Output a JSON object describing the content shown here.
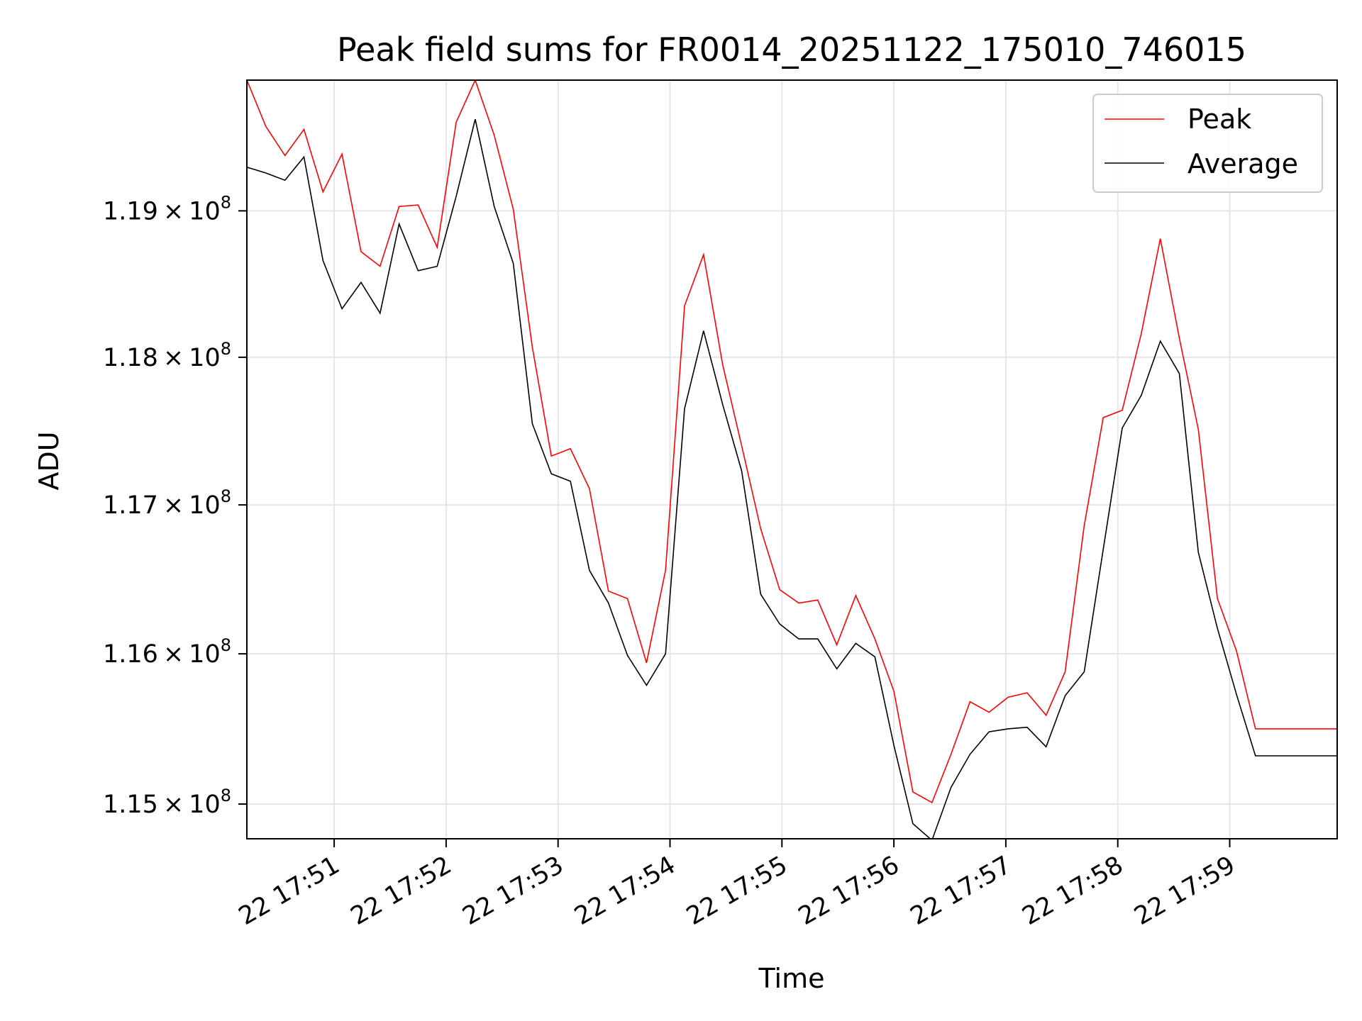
{
  "chart_data": {
    "type": "line",
    "title": "Peak field sums for FR0014_20251122_175010_746015",
    "xlabel": "Time",
    "ylabel": "ADU",
    "x_unit": "minutes after 17:50 (Nov 22)",
    "xlim": [
      0.22,
      9.96
    ],
    "ylim": [
      114770000,
      119900000
    ],
    "y_scale": "log",
    "grid": true,
    "legend_position": "top-right",
    "x_ticks": [
      {
        "value": 1,
        "label": "22 17:51"
      },
      {
        "value": 2,
        "label": "22 17:52"
      },
      {
        "value": 3,
        "label": "22 17:53"
      },
      {
        "value": 4,
        "label": "22 17:54"
      },
      {
        "value": 5,
        "label": "22 17:55"
      },
      {
        "value": 6,
        "label": "22 17:56"
      },
      {
        "value": 7,
        "label": "22 17:57"
      },
      {
        "value": 8,
        "label": "22 17:58"
      },
      {
        "value": 9,
        "label": "22 17:59"
      }
    ],
    "y_ticks": [
      {
        "value": 115000000,
        "mantissa": "1.15",
        "exp": "8"
      },
      {
        "value": 116000000,
        "mantissa": "1.16",
        "exp": "8"
      },
      {
        "value": 117000000,
        "mantissa": "1.17",
        "exp": "8"
      },
      {
        "value": 118000000,
        "mantissa": "1.18",
        "exp": "8"
      },
      {
        "value": 119000000,
        "mantissa": "1.19",
        "exp": "8"
      }
    ],
    "series": [
      {
        "name": "Peak",
        "color": "#ff0000",
        "x": [
          0.22,
          0.39,
          0.56,
          0.73,
          0.9,
          1.07,
          1.24,
          1.41,
          1.58,
          1.75,
          1.92,
          2.09,
          2.26,
          2.43,
          2.6,
          2.77,
          2.94,
          3.11,
          3.28,
          3.45,
          3.62,
          3.79,
          3.96,
          4.13,
          4.3,
          4.47,
          4.64,
          4.81,
          4.98,
          5.15,
          5.32,
          5.49,
          5.66,
          5.83,
          6.0,
          6.17,
          6.34,
          6.51,
          6.68,
          6.85,
          7.02,
          7.19,
          7.36,
          7.53,
          7.7,
          7.87,
          8.04,
          8.21,
          8.38,
          8.55,
          8.72,
          8.89,
          9.06,
          9.23,
          9.4,
          9.57,
          9.74,
          9.96
        ],
        "y": [
          119900000,
          119580000,
          119380000,
          119560000,
          119130000,
          119390000,
          118720000,
          118620000,
          119030000,
          119040000,
          118750000,
          119610000,
          119900000,
          119520000,
          119010000,
          118070000,
          117330000,
          117380000,
          117110000,
          116420000,
          116370000,
          115940000,
          116560000,
          118350000,
          118700000,
          117950000,
          117400000,
          116840000,
          116430000,
          116340000,
          116360000,
          116060000,
          116390000,
          116100000,
          115750000,
          115080000,
          115010000,
          115330000,
          115680000,
          115610000,
          115710000,
          115740000,
          115590000,
          115880000,
          116860000,
          117590000,
          117640000,
          118160000,
          118810000,
          118130000,
          117510000,
          116370000,
          116020000,
          115500000,
          115500000,
          115500000,
          115500000,
          115500000
        ]
      },
      {
        "name": "Average",
        "color": "#000000",
        "x": [
          0.22,
          0.39,
          0.56,
          0.73,
          0.9,
          1.07,
          1.24,
          1.41,
          1.58,
          1.75,
          1.92,
          2.09,
          2.26,
          2.43,
          2.6,
          2.77,
          2.94,
          3.11,
          3.28,
          3.45,
          3.62,
          3.79,
          3.96,
          4.13,
          4.3,
          4.47,
          4.64,
          4.81,
          4.98,
          5.15,
          5.32,
          5.49,
          5.66,
          5.83,
          6.0,
          6.17,
          6.34,
          6.51,
          6.68,
          6.85,
          7.02,
          7.19,
          7.36,
          7.53,
          7.7,
          7.87,
          8.04,
          8.21,
          8.38,
          8.55,
          8.72,
          8.89,
          9.06,
          9.23,
          9.4,
          9.57,
          9.74,
          9.96
        ],
        "y": [
          119300000,
          119260000,
          119210000,
          119370000,
          118660000,
          118330000,
          118510000,
          118300000,
          118910000,
          118590000,
          118620000,
          119100000,
          119630000,
          119030000,
          118640000,
          117550000,
          117210000,
          117160000,
          116560000,
          116340000,
          115990000,
          115790000,
          116000000,
          117650000,
          118180000,
          117680000,
          117230000,
          116400000,
          116200000,
          116100000,
          116100000,
          115900000,
          116070000,
          115980000,
          115390000,
          114870000,
          114760000,
          115110000,
          115330000,
          115480000,
          115500000,
          115510000,
          115380000,
          115720000,
          115880000,
          116700000,
          117520000,
          117740000,
          118110000,
          117890000,
          116680000,
          116170000,
          115730000,
          115320000,
          115320000,
          115320000,
          115320000,
          115320000
        ]
      }
    ]
  }
}
